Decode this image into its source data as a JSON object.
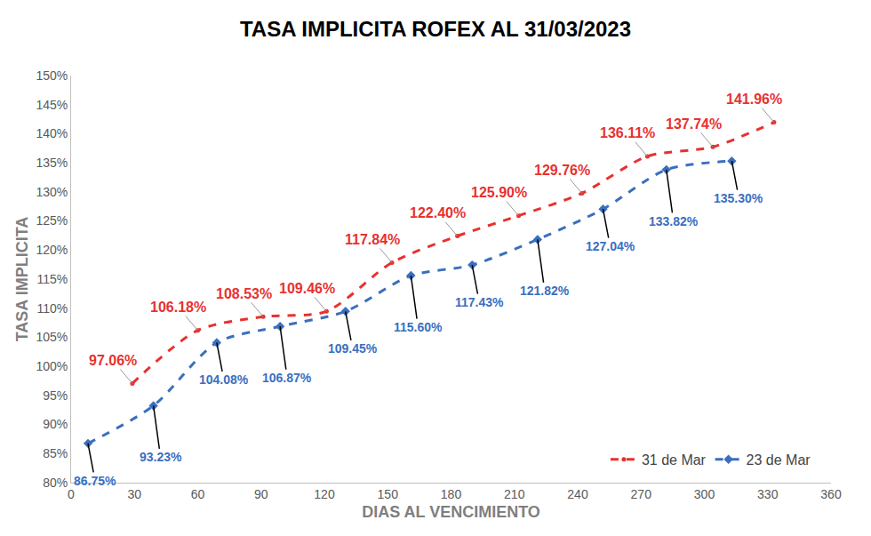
{
  "chart_data": {
    "type": "line",
    "title": "TASA IMPLICITA ROFEX AL 31/03/2023",
    "x_label": "DIAS AL VENCIMIENTO",
    "y_label": "TASA IMPLICITA",
    "xlim": [
      0,
      360
    ],
    "xticks": [
      0,
      30,
      60,
      90,
      120,
      150,
      180,
      210,
      240,
      270,
      300,
      330,
      360
    ],
    "ylim": [
      80,
      150
    ],
    "yticks": [
      {
        "value": 80,
        "label": "80%"
      },
      {
        "value": 85,
        "label": "85%"
      },
      {
        "value": 90,
        "label": "90%"
      },
      {
        "value": 95,
        "label": "95%"
      },
      {
        "value": 100,
        "label": "100%"
      },
      {
        "value": 105,
        "label": "105%"
      },
      {
        "value": 110,
        "label": "110%"
      },
      {
        "value": 115,
        "label": "115%"
      },
      {
        "value": 120,
        "label": "120%"
      },
      {
        "value": 125,
        "label": "125%"
      },
      {
        "value": 130,
        "label": "130%"
      },
      {
        "value": 135,
        "label": "135%"
      },
      {
        "value": 140,
        "label": "140%"
      },
      {
        "value": 145,
        "label": "145%"
      },
      {
        "value": 150,
        "label": "150%"
      }
    ],
    "grid": false,
    "legend": "bottom right",
    "data_labels": true,
    "series": [
      {
        "name": "31 de Mar",
        "color": "#e8312f",
        "marker": "circle",
        "line_style": "dashed",
        "x": [
          29,
          60,
          91,
          121,
          152,
          183,
          212,
          242,
          273,
          304,
          333
        ],
        "values": [
          97.06,
          106.18,
          108.53,
          109.46,
          117.84,
          122.4,
          125.9,
          129.76,
          136.11,
          137.74,
          141.96
        ],
        "value_labels": [
          "97.06%",
          "106.18%",
          "108.53%",
          "109.46%",
          "117.84%",
          "122.40%",
          "125.90%",
          "129.76%",
          "136.11%",
          "137.74%",
          "141.96%"
        ]
      },
      {
        "name": "23 de Mar",
        "color": "#3a6fbf",
        "marker": "diamond",
        "line_style": "dashed",
        "x": [
          8,
          39,
          69,
          99,
          130,
          161,
          190,
          221,
          252,
          282,
          313
        ],
        "values": [
          86.75,
          93.23,
          104.08,
          106.87,
          109.45,
          115.6,
          117.43,
          121.82,
          127.04,
          133.82,
          135.3
        ],
        "value_labels": [
          "86.75%",
          "93.23%",
          "104.08%",
          "106.87%",
          "109.45%",
          "115.60%",
          "117.43%",
          "121.82%",
          "127.04%",
          "133.82%",
          "135.30%"
        ]
      }
    ]
  }
}
